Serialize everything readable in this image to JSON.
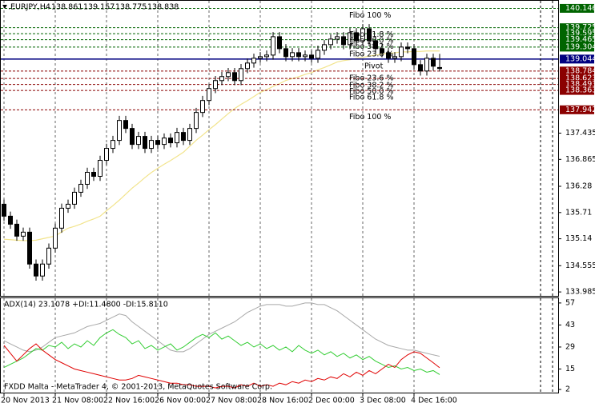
{
  "header": {
    "symbol": ".EURJPY,H4"
  },
  "footer": "FXDD Malta - MetaTrader 4, © 2001-2013, MetaQuotes Software Corp.",
  "chart_data": [
    {
      "type": "candlestick",
      "categories": [
        "20 Nov 2013",
        null,
        null,
        null,
        null,
        null,
        null,
        null,
        "21 Nov 08:00",
        null,
        null,
        null,
        null,
        null,
        null,
        null,
        "22 Nov 16:00",
        null,
        null,
        null,
        null,
        null,
        null,
        null,
        "26 Nov 00:00",
        null,
        null,
        null,
        null,
        null,
        null,
        null,
        "27 Nov 08:00",
        null,
        null,
        null,
        null,
        null,
        null,
        null,
        "28 Nov 16:00",
        null,
        null,
        null,
        null,
        null,
        null,
        null,
        "2 Dec 00:00",
        null,
        null,
        null,
        null,
        null,
        null,
        null,
        "3 Dec 08:00",
        null,
        null,
        null,
        null,
        null,
        null,
        null,
        "4 Dec 16:00",
        null,
        null,
        null,
        null
      ],
      "open": [
        135.891,
        135.631,
        135.457,
        135.197,
        135.284,
        134.591,
        134.331,
        134.591,
        134.937,
        135.371,
        135.804,
        135.891,
        136.151,
        136.324,
        136.584,
        136.497,
        136.844,
        137.104,
        137.277,
        137.71,
        137.537,
        137.19,
        137.364,
        137.104,
        137.277,
        137.19,
        137.329,
        137.225,
        137.45,
        137.277,
        137.537,
        137.884,
        138.144,
        138.404,
        138.577,
        138.664,
        138.75,
        138.577,
        138.837,
        138.958,
        139.062,
        139.097,
        139.131,
        139.53,
        139.27,
        139.097,
        139.183,
        139.097,
        139.131,
        139.062,
        139.235,
        139.357,
        139.478,
        139.53,
        139.357,
        139.617,
        139.443,
        139.703,
        139.443,
        139.27,
        139.183,
        139.062,
        139.097,
        139.305,
        139.27,
        138.923,
        138.785,
        139.062,
        138.861
      ],
      "high": [
        135.991,
        135.731,
        135.557,
        135.384,
        135.384,
        134.691,
        134.691,
        135.037,
        135.471,
        135.904,
        135.991,
        136.251,
        136.424,
        136.684,
        136.684,
        136.944,
        137.204,
        137.377,
        137.81,
        137.81,
        137.637,
        137.464,
        137.464,
        137.377,
        137.377,
        137.429,
        137.429,
        137.55,
        137.55,
        137.637,
        137.984,
        138.244,
        138.504,
        138.677,
        138.764,
        138.85,
        138.85,
        138.937,
        139.058,
        139.162,
        139.197,
        139.231,
        139.63,
        139.63,
        139.37,
        139.283,
        139.283,
        139.231,
        139.231,
        139.335,
        139.457,
        139.578,
        139.63,
        139.63,
        139.717,
        139.717,
        139.803,
        139.803,
        139.543,
        139.37,
        139.283,
        139.197,
        139.405,
        139.405,
        139.37,
        139.023,
        139.162,
        139.162,
        139.157
      ],
      "low": [
        135.531,
        135.357,
        135.097,
        135.097,
        134.491,
        134.231,
        134.231,
        134.491,
        134.837,
        135.271,
        135.704,
        135.791,
        136.051,
        136.224,
        136.397,
        136.397,
        136.744,
        137.004,
        137.177,
        137.437,
        137.09,
        137.09,
        137.004,
        137.004,
        137.09,
        137.09,
        137.125,
        137.125,
        137.177,
        137.177,
        137.437,
        137.784,
        138.044,
        138.304,
        138.477,
        138.564,
        138.477,
        138.477,
        138.737,
        138.858,
        138.962,
        138.997,
        139.031,
        139.17,
        138.997,
        138.997,
        138.997,
        138.997,
        138.962,
        138.962,
        139.135,
        139.257,
        139.378,
        139.257,
        139.257,
        139.343,
        139.343,
        139.343,
        139.17,
        139.083,
        138.962,
        138.962,
        138.997,
        139.17,
        138.823,
        138.685,
        138.685,
        138.789,
        138.775
      ],
      "close": [
        135.631,
        135.457,
        135.197,
        135.284,
        134.591,
        134.331,
        134.591,
        134.937,
        135.371,
        135.804,
        135.891,
        136.151,
        136.324,
        136.584,
        136.497,
        136.844,
        137.104,
        137.277,
        137.71,
        137.537,
        137.19,
        137.364,
        137.104,
        137.277,
        137.19,
        137.329,
        137.225,
        137.45,
        137.277,
        137.537,
        137.884,
        138.144,
        138.404,
        138.577,
        138.664,
        138.75,
        138.577,
        138.837,
        138.958,
        139.062,
        139.097,
        139.131,
        139.53,
        139.27,
        139.097,
        139.183,
        139.097,
        139.131,
        139.062,
        139.235,
        139.357,
        139.478,
        139.53,
        139.357,
        139.617,
        139.443,
        139.703,
        139.443,
        139.27,
        139.183,
        139.062,
        139.097,
        139.305,
        139.27,
        138.923,
        138.785,
        139.062,
        138.889,
        138.838
      ],
      "ma": {
        "color": "#f2e48c",
        "values": [
          135.13,
          135.12,
          135.11,
          135.1,
          135.1,
          135.11,
          135.14,
          135.17,
          135.2,
          135.29,
          135.37,
          135.41,
          135.46,
          135.52,
          135.57,
          135.63,
          135.75,
          135.86,
          135.98,
          136.11,
          136.24,
          136.35,
          136.47,
          136.58,
          136.67,
          136.76,
          136.84,
          136.93,
          137.02,
          137.15,
          137.28,
          137.39,
          137.51,
          137.62,
          137.74,
          137.86,
          137.97,
          138.06,
          138.14,
          138.23,
          138.32,
          138.38,
          138.45,
          138.51,
          138.58,
          138.62,
          138.66,
          138.71,
          138.75,
          138.81,
          138.86,
          138.92,
          138.98,
          139.01,
          139.03,
          139.06,
          139.08,
          139.11,
          139.13,
          139.15,
          139.17,
          139.18,
          139.2,
          139.2,
          139.21,
          139.21,
          139.22,
          139.22,
          139.22
        ]
      },
      "colors": {
        "up": "#ffffff",
        "down": "#000000",
        "outline": "#000000"
      },
      "levels": [
        {
          "label": "Fibo 100 %",
          "value": 140.146,
          "color": "#006400",
          "box": "#006400"
        },
        {
          "label": "Fibo 61.8 %",
          "value": 139.725,
          "color": "#006400",
          "box": "#006400"
        },
        {
          "label": "Fibo 50.0 %",
          "value": 139.595,
          "color": "#006400",
          "box": "#006400"
        },
        {
          "label": "Fibo 38.2 %",
          "value": 139.465,
          "color": "#006400",
          "box": "#006400"
        },
        {
          "label": "Fibo 23.6 %",
          "value": 139.304,
          "color": "#006400",
          "box": "#006400"
        },
        {
          "label": "Pivot",
          "value": 139.044,
          "color": "#000080",
          "box": "#000080"
        },
        {
          "label": "Fibo 23.6 %",
          "value": 138.784,
          "color": "#8b0000",
          "box": "#8b0000"
        },
        {
          "label": "Fibo 38.2 %",
          "value": 138.623,
          "color": "#8b0000",
          "box": "#8b0000"
        },
        {
          "label": "Fibo 50.0 %",
          "value": 138.493,
          "color": "#8b0000",
          "box": "#8b0000"
        },
        {
          "label": "Fibo 61.8 %",
          "value": 138.363,
          "color": "#8b0000",
          "box": "#8b0000"
        },
        {
          "label": "Fibo 100 %",
          "value": 137.942,
          "color": "#8b0000",
          "box": "#8b0000"
        }
      ],
      "ylim": [
        133.9,
        140.31
      ],
      "yticks": [
        137.435,
        136.865,
        136.28,
        135.71,
        135.14,
        134.555,
        133.985
      ],
      "grid": true
    },
    {
      "type": "line",
      "title": "ADX(14) 23.1078 +DI:11.4800 -DI:15.8110",
      "series": [
        {
          "color": "#a8a8a8",
          "values": [
            33,
            31,
            29,
            27,
            26,
            27,
            29,
            32,
            35,
            36,
            37,
            38,
            40,
            42,
            43,
            44,
            46,
            48,
            50,
            49,
            45,
            42,
            39,
            36,
            33,
            30,
            27,
            26,
            26,
            28,
            31,
            34,
            37,
            39,
            41,
            43,
            45,
            48,
            51,
            53,
            55,
            56,
            56,
            56,
            55,
            55,
            56,
            57,
            57,
            56,
            56,
            54,
            52,
            49,
            46,
            43,
            40,
            37,
            34,
            32,
            30,
            29,
            28,
            27,
            27,
            26,
            25,
            24,
            23.1078
          ]
        },
        {
          "color": "#32cd32",
          "values": [
            16,
            18,
            20,
            22,
            25,
            28,
            27,
            30,
            29,
            32,
            28,
            31,
            29,
            33,
            30,
            35,
            38,
            40,
            37,
            35,
            31,
            33,
            28,
            30,
            27,
            29,
            31,
            27,
            29,
            32,
            35,
            37,
            35,
            38,
            34,
            36,
            33,
            30,
            32,
            29,
            31,
            28,
            30,
            27,
            29,
            26,
            30,
            27,
            25,
            27,
            24,
            26,
            23,
            25,
            22,
            24,
            21,
            23,
            20,
            18,
            16,
            17,
            15,
            16,
            14,
            15,
            13,
            14,
            11.48
          ]
        },
        {
          "color": "#e00000",
          "values": [
            30,
            25,
            20,
            24,
            28,
            31,
            27,
            24,
            21,
            19,
            17,
            15,
            14,
            13,
            12,
            11,
            10,
            9,
            8,
            8,
            9,
            11,
            10,
            9,
            8,
            7,
            6,
            6,
            5,
            5,
            4,
            4,
            4,
            3,
            4,
            4,
            3,
            5,
            4,
            6,
            4,
            5,
            4,
            6,
            5,
            7,
            6,
            8,
            7,
            9,
            8,
            10,
            9,
            12,
            10,
            13,
            11,
            14,
            12,
            15,
            18,
            16,
            21,
            24,
            26,
            25,
            22,
            19,
            15.811
          ]
        }
      ],
      "ylim": [
        0,
        60
      ],
      "yticks": [
        57,
        43,
        29,
        15,
        2
      ],
      "grid": true
    }
  ]
}
